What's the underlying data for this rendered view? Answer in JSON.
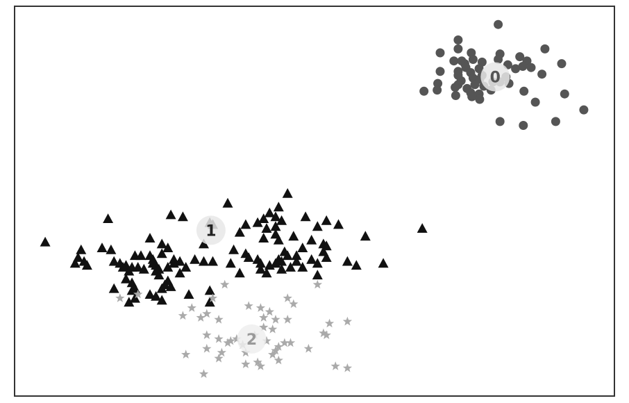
{
  "chart_data": {
    "type": "scatter",
    "title": "",
    "xlabel": "",
    "ylabel": "",
    "xlim": [
      0,
      100
    ],
    "ylim": [
      0,
      100
    ],
    "grid": false,
    "legend": "none",
    "series": [
      {
        "label": "0",
        "marker": "circle",
        "color": "#555555",
        "label_color": "#555555",
        "label_halo": "#e8e8e8",
        "center": [
          80.2,
          82.0
        ],
        "points": [
          [
            80.7,
            95.5
          ],
          [
            74.0,
            91.5
          ],
          [
            74.0,
            89.2
          ],
          [
            88.5,
            89.2
          ],
          [
            71.0,
            88.2
          ],
          [
            76.2,
            88.2
          ],
          [
            81.0,
            87.9
          ],
          [
            84.3,
            87.2
          ],
          [
            76.5,
            86.5
          ],
          [
            80.7,
            86.5
          ],
          [
            85.5,
            86.1
          ],
          [
            73.3,
            86.1
          ],
          [
            74.6,
            86.1
          ],
          [
            78.0,
            85.8
          ],
          [
            91.3,
            85.4
          ],
          [
            75.1,
            85.4
          ],
          [
            82.3,
            85.1
          ],
          [
            84.8,
            84.7
          ],
          [
            86.2,
            84.4
          ],
          [
            75.3,
            84.4
          ],
          [
            77.5,
            84.1
          ],
          [
            83.6,
            84.1
          ],
          [
            71.0,
            83.4
          ],
          [
            74.0,
            83.4
          ],
          [
            76.1,
            83.1
          ],
          [
            88.0,
            82.7
          ],
          [
            74.0,
            82.4
          ],
          [
            78.0,
            82.4
          ],
          [
            82.0,
            82.0
          ],
          [
            76.5,
            81.7
          ],
          [
            77.6,
            81.4
          ],
          [
            74.5,
            81.0
          ],
          [
            79.8,
            80.7
          ],
          [
            81.0,
            80.7
          ],
          [
            82.5,
            80.3
          ],
          [
            70.6,
            80.3
          ],
          [
            74.0,
            80.0
          ],
          [
            76.8,
            80.0
          ],
          [
            78.3,
            79.6
          ],
          [
            73.5,
            79.3
          ],
          [
            75.5,
            79.0
          ],
          [
            79.5,
            78.6
          ],
          [
            70.5,
            78.6
          ],
          [
            68.3,
            78.3
          ],
          [
            85.0,
            78.3
          ],
          [
            76.1,
            77.9
          ],
          [
            77.5,
            77.6
          ],
          [
            91.8,
            77.6
          ],
          [
            73.6,
            77.2
          ],
          [
            76.3,
            76.9
          ],
          [
            77.6,
            76.2
          ],
          [
            86.9,
            75.5
          ],
          [
            95.0,
            73.5
          ],
          [
            81.0,
            70.5
          ],
          [
            90.3,
            70.5
          ],
          [
            84.9,
            69.5
          ]
        ]
      },
      {
        "label": "1",
        "marker": "triangle",
        "color": "#111111",
        "label_color": "#222222",
        "label_halo": "#e8e8e8",
        "center": [
          32.7,
          42.5
        ],
        "points": [
          [
            45.5,
            52.0
          ],
          [
            35.5,
            49.5
          ],
          [
            44.0,
            48.5
          ],
          [
            42.5,
            47.0
          ],
          [
            26.0,
            46.5
          ],
          [
            28.0,
            46.0
          ],
          [
            43.5,
            46.0
          ],
          [
            48.5,
            46.0
          ],
          [
            41.5,
            45.5
          ],
          [
            15.5,
            45.5
          ],
          [
            44.5,
            45.0
          ],
          [
            52.0,
            45.0
          ],
          [
            32.5,
            44.5
          ],
          [
            40.5,
            44.5
          ],
          [
            54.0,
            44.0
          ],
          [
            33.0,
            44.0
          ],
          [
            38.5,
            44.0
          ],
          [
            43.5,
            43.5
          ],
          [
            50.5,
            43.5
          ],
          [
            42.0,
            43.0
          ],
          [
            68.0,
            43.0
          ],
          [
            37.5,
            42.0
          ],
          [
            43.5,
            41.5
          ],
          [
            58.5,
            41.0
          ],
          [
            46.5,
            41.0
          ],
          [
            22.5,
            40.5
          ],
          [
            41.5,
            40.5
          ],
          [
            44.0,
            40.0
          ],
          [
            49.5,
            40.0
          ],
          [
            5.0,
            39.5
          ],
          [
            24.5,
            39.0
          ],
          [
            31.5,
            39.0
          ],
          [
            51.5,
            39.0
          ],
          [
            52.0,
            38.5
          ],
          [
            14.5,
            38.0
          ],
          [
            25.5,
            38.0
          ],
          [
            48.0,
            38.0
          ],
          [
            11.0,
            37.5
          ],
          [
            16.0,
            37.5
          ],
          [
            36.5,
            37.5
          ],
          [
            45.0,
            37.0
          ],
          [
            51.5,
            37.0
          ],
          [
            38.5,
            36.5
          ],
          [
            20.0,
            36.0
          ],
          [
            21.0,
            36.0
          ],
          [
            22.5,
            36.0
          ],
          [
            24.5,
            36.5
          ],
          [
            45.5,
            36.0
          ],
          [
            47.0,
            36.0
          ],
          [
            10.5,
            35.5
          ],
          [
            39.0,
            35.5
          ],
          [
            52.0,
            35.5
          ],
          [
            23.0,
            35.0
          ],
          [
            26.5,
            35.0
          ],
          [
            30.0,
            35.0
          ],
          [
            40.5,
            35.0
          ],
          [
            44.0,
            35.0
          ],
          [
            49.5,
            35.0
          ],
          [
            11.5,
            34.5
          ],
          [
            16.5,
            34.5
          ],
          [
            27.5,
            34.5
          ],
          [
            31.5,
            34.5
          ],
          [
            33.0,
            34.5
          ],
          [
            44.5,
            34.5
          ],
          [
            47.0,
            34.5
          ],
          [
            55.5,
            34.5
          ],
          [
            10.0,
            34.0
          ],
          [
            17.5,
            34.0
          ],
          [
            23.0,
            34.0
          ],
          [
            26.5,
            34.0
          ],
          [
            36.0,
            34.0
          ],
          [
            41.0,
            34.0
          ],
          [
            43.5,
            34.0
          ],
          [
            50.5,
            34.0
          ],
          [
            61.5,
            34.0
          ],
          [
            12.0,
            33.5
          ],
          [
            18.5,
            33.5
          ],
          [
            23.5,
            33.5
          ],
          [
            42.5,
            33.5
          ],
          [
            57.0,
            33.5
          ],
          [
            18.0,
            33.0
          ],
          [
            19.5,
            33.0
          ],
          [
            20.5,
            33.0
          ],
          [
            25.5,
            33.0
          ],
          [
            28.5,
            33.0
          ],
          [
            46.0,
            33.0
          ],
          [
            48.0,
            33.0
          ],
          [
            21.5,
            32.5
          ],
          [
            24.0,
            32.5
          ],
          [
            41.0,
            32.5
          ],
          [
            44.5,
            32.5
          ],
          [
            19.0,
            32.0
          ],
          [
            23.5,
            32.0
          ],
          [
            27.5,
            31.5
          ],
          [
            37.5,
            31.5
          ],
          [
            42.0,
            31.5
          ],
          [
            24.0,
            31.0
          ],
          [
            50.5,
            31.0
          ],
          [
            18.5,
            30.0
          ],
          [
            25.5,
            29.5
          ],
          [
            19.5,
            29.0
          ],
          [
            25.0,
            28.5
          ],
          [
            26.0,
            28.0
          ],
          [
            16.5,
            27.5
          ],
          [
            20.0,
            27.5
          ],
          [
            24.5,
            27.5
          ],
          [
            19.5,
            27.0
          ],
          [
            32.5,
            27.0
          ],
          [
            22.5,
            26.0
          ],
          [
            29.0,
            26.0
          ],
          [
            23.5,
            25.5
          ],
          [
            20.0,
            25.0
          ],
          [
            24.5,
            24.5
          ],
          [
            32.5,
            24.0
          ],
          [
            19.0,
            24.0
          ]
        ]
      },
      {
        "label": "2",
        "marker": "star",
        "color": "#aaaaaa",
        "label_color": "#999999",
        "label_halo": "#eeeeee",
        "center": [
          39.5,
          14.5
        ],
        "points": [
          [
            35.0,
            28.5
          ],
          [
            50.5,
            28.5
          ],
          [
            20.5,
            26.0
          ],
          [
            17.5,
            25.0
          ],
          [
            33.0,
            25.0
          ],
          [
            45.5,
            25.0
          ],
          [
            46.5,
            23.5
          ],
          [
            39.0,
            23.0
          ],
          [
            29.5,
            22.5
          ],
          [
            41.0,
            22.5
          ],
          [
            32.0,
            21.0
          ],
          [
            42.5,
            21.5
          ],
          [
            28.0,
            20.5
          ],
          [
            41.5,
            20.0
          ],
          [
            31.0,
            20.0
          ],
          [
            34.0,
            19.5
          ],
          [
            43.5,
            19.5
          ],
          [
            45.5,
            19.5
          ],
          [
            55.5,
            19.0
          ],
          [
            52.5,
            18.5
          ],
          [
            41.5,
            17.5
          ],
          [
            43.0,
            17.0
          ],
          [
            51.5,
            16.0
          ],
          [
            32.0,
            15.5
          ],
          [
            40.0,
            15.5
          ],
          [
            52.0,
            15.5
          ],
          [
            34.0,
            14.5
          ],
          [
            36.0,
            14.0
          ],
          [
            37.0,
            14.5
          ],
          [
            35.5,
            13.5
          ],
          [
            42.0,
            14.0
          ],
          [
            45.0,
            13.5
          ],
          [
            46.0,
            13.5
          ],
          [
            38.0,
            13.0
          ],
          [
            44.0,
            12.5
          ],
          [
            49.0,
            12.0
          ],
          [
            32.0,
            12.0
          ],
          [
            43.5,
            11.5
          ],
          [
            34.5,
            11.0
          ],
          [
            38.5,
            11.0
          ],
          [
            28.5,
            10.5
          ],
          [
            43.0,
            10.5
          ],
          [
            34.0,
            9.5
          ],
          [
            44.0,
            9.0
          ],
          [
            40.5,
            8.5
          ],
          [
            38.5,
            8.0
          ],
          [
            41.0,
            7.5
          ],
          [
            53.5,
            7.5
          ],
          [
            55.5,
            7.0
          ],
          [
            31.5,
            5.5
          ]
        ]
      }
    ]
  }
}
